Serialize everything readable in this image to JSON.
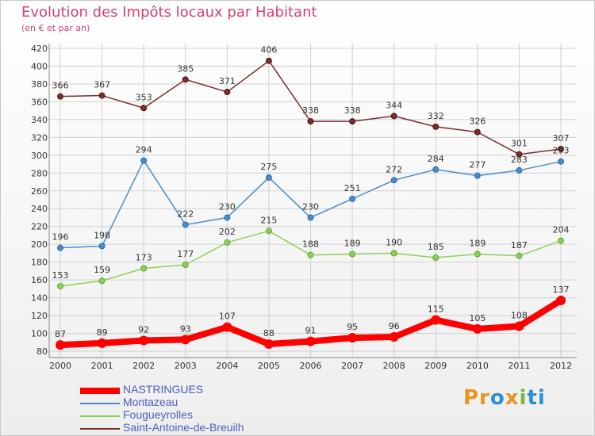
{
  "title": "Evolution des Impôts locaux par Habitant",
  "subtitle": "(en € et par an)",
  "logo": {
    "parts": [
      "Pr",
      "o",
      "x",
      "i",
      "ti"
    ],
    "colors": [
      "#e8941f",
      "#2e8fd4",
      "#e8941f",
      "#7ab53a",
      "#2e8fd4"
    ]
  },
  "chart_data": {
    "type": "line",
    "title": "Evolution des Impôts locaux par Habitant",
    "subtitle": "(en € et par an)",
    "x": [
      "2000",
      "2001",
      "2002",
      "2003",
      "2004",
      "2005",
      "2006",
      "2007",
      "2008",
      "2009",
      "2010",
      "2011",
      "2012"
    ],
    "ylim": [
      80,
      420
    ],
    "yticks": [
      80,
      100,
      120,
      140,
      160,
      180,
      200,
      220,
      240,
      260,
      280,
      300,
      320,
      340,
      360,
      380,
      400,
      420
    ],
    "grid": true,
    "legend_position": "bottom-left",
    "series": [
      {
        "name": "NASTRINGUES",
        "color": "#ff0000",
        "values": [
          87,
          89,
          92,
          93,
          107,
          88,
          91,
          95,
          96,
          115,
          105,
          108,
          137
        ]
      },
      {
        "name": "Montazeau",
        "color": "#4a8cc8",
        "values": [
          196,
          198,
          294,
          222,
          230,
          275,
          230,
          251,
          272,
          284,
          277,
          283,
          293
        ]
      },
      {
        "name": "Fougueyrolles",
        "color": "#8ed15a",
        "values": [
          153,
          159,
          173,
          177,
          202,
          215,
          188,
          189,
          190,
          185,
          189,
          187,
          204
        ]
      },
      {
        "name": "Saint-Antoine-de-Breuilh",
        "color": "#7a2e2e",
        "values": [
          366,
          367,
          353,
          385,
          371,
          406,
          338,
          338,
          344,
          332,
          326,
          301,
          307
        ]
      }
    ]
  }
}
